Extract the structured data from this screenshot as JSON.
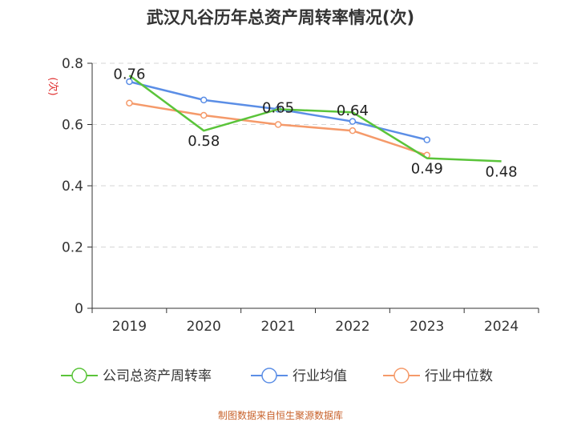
{
  "chart_data": {
    "type": "line",
    "title": "武汉凡谷历年总资产周转率情况(次)",
    "ylabel": "(次)",
    "xlabel": "",
    "categories": [
      "2019",
      "2020",
      "2021",
      "2022",
      "2023",
      "2024"
    ],
    "ylim": [
      0,
      0.8
    ],
    "yticks": [
      "0",
      "0.2",
      "0.4",
      "0.6",
      "0.8"
    ],
    "grid": true,
    "legend_position": "bottom",
    "series": [
      {
        "name": "公司总资产周转率",
        "color": "#5ac43a",
        "values": [
          0.76,
          0.58,
          0.65,
          0.64,
          0.49,
          0.48
        ],
        "labels": [
          "0.76",
          "0.58",
          "0.65",
          "0.64",
          "0.49",
          "0.48"
        ]
      },
      {
        "name": "行业均值",
        "color": "#5b8ee6",
        "values": [
          0.74,
          0.68,
          0.65,
          0.61,
          0.55,
          null
        ]
      },
      {
        "name": "行业中位数",
        "color": "#f59a6a",
        "values": [
          0.67,
          0.63,
          0.6,
          0.58,
          0.5,
          null
        ]
      }
    ],
    "source": "制图数据来自恒生聚源数据库"
  }
}
